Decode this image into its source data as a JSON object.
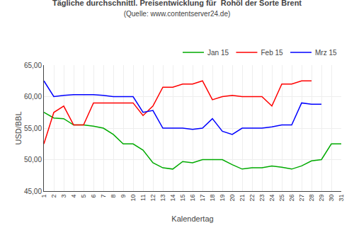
{
  "chart_data": {
    "type": "line",
    "title": "Tägliche durchschnittl. Preisentwicklung für  Rohöl der Sorte Brent",
    "subtitle": "(Quelle: www.contentserver24.de)",
    "xlabel": "Kalendertag",
    "ylabel": "USD/BBL",
    "xlim": [
      1,
      31
    ],
    "xticks": [
      1,
      2,
      3,
      4,
      5,
      6,
      7,
      8,
      9,
      10,
      11,
      12,
      13,
      14,
      15,
      16,
      17,
      18,
      19,
      20,
      21,
      22,
      23,
      24,
      25,
      26,
      27,
      28,
      29,
      30,
      31
    ],
    "ylim": [
      45.0,
      65.0
    ],
    "yticks": [
      {
        "value": 45.0,
        "label": "45,00"
      },
      {
        "value": 50.0,
        "label": "50,00"
      },
      {
        "value": 55.0,
        "label": "55,00"
      },
      {
        "value": 60.0,
        "label": "60,00"
      },
      {
        "value": 65.0,
        "label": "65,00"
      }
    ],
    "grid": true,
    "legend": "upper right",
    "series": [
      {
        "name": "Jan 15",
        "color": "#00AA00",
        "x": [
          1,
          2,
          3,
          4,
          5,
          6,
          7,
          8,
          9,
          10,
          11,
          12,
          13,
          14,
          15,
          16,
          17,
          18,
          19,
          20,
          21,
          22,
          23,
          24,
          25,
          26,
          27,
          28,
          29,
          30,
          31
        ],
        "values": [
          57.5,
          56.6,
          56.5,
          55.5,
          55.5,
          55.3,
          55.0,
          54.0,
          52.5,
          52.5,
          51.5,
          49.5,
          48.7,
          48.5,
          49.7,
          49.5,
          50.0,
          50.0,
          50.0,
          49.2,
          48.5,
          48.7,
          48.7,
          49.0,
          48.8,
          48.5,
          49.0,
          49.8,
          50.0,
          52.5,
          52.5
        ]
      },
      {
        "name": "Feb 15",
        "color": "#FF0000",
        "x": [
          1,
          2,
          3,
          4,
          5,
          6,
          7,
          8,
          9,
          10,
          11,
          12,
          13,
          14,
          15,
          16,
          17,
          18,
          19,
          20,
          21,
          22,
          23,
          24,
          25,
          26,
          27,
          28
        ],
        "values": [
          52.5,
          57.5,
          58.5,
          55.5,
          55.5,
          59.0,
          59.0,
          59.0,
          59.0,
          59.0,
          57.0,
          58.5,
          61.5,
          61.5,
          62.0,
          62.0,
          62.5,
          59.5,
          60.0,
          60.2,
          60.0,
          60.0,
          60.0,
          58.5,
          62.0,
          62.0,
          62.5,
          62.5
        ]
      },
      {
        "name": "Mrz 15",
        "color": "#0000FF",
        "x": [
          1,
          2,
          3,
          4,
          5,
          6,
          7,
          8,
          9,
          10,
          11,
          12,
          13,
          14,
          15,
          16,
          17,
          18,
          19,
          20,
          21,
          22,
          23,
          24,
          25,
          26,
          27,
          28,
          29
        ],
        "values": [
          62.5,
          60.0,
          60.2,
          60.3,
          60.3,
          60.3,
          60.2,
          60.0,
          60.0,
          60.0,
          57.5,
          57.8,
          55.0,
          55.0,
          55.0,
          54.8,
          55.0,
          56.5,
          54.5,
          54.0,
          55.0,
          55.0,
          55.0,
          55.2,
          55.5,
          55.5,
          59.0,
          58.8,
          58.8
        ]
      }
    ]
  }
}
